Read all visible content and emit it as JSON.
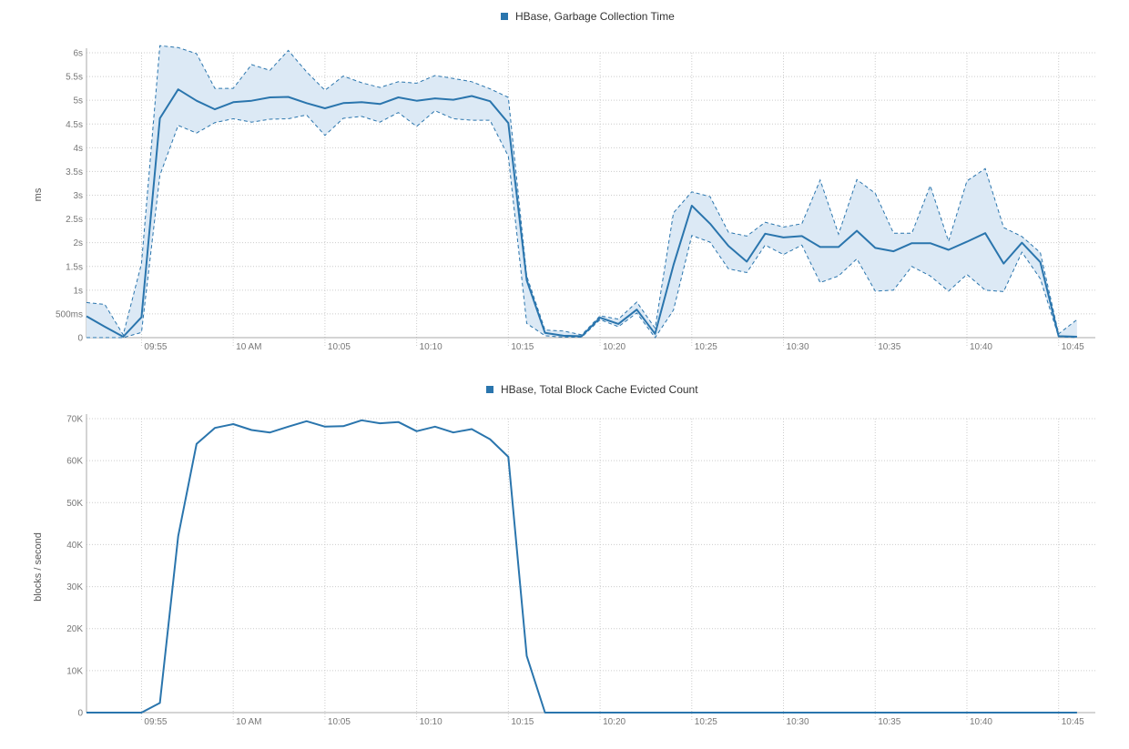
{
  "colors": {
    "series": "#2a75ad",
    "band": "#dce9f5"
  },
  "x_ticks": [
    "09:55",
    "10 AM",
    "10:05",
    "10:10",
    "10:15",
    "10:20",
    "10:25",
    "10:30",
    "10:35",
    "10:40",
    "10:45"
  ],
  "chart_data": [
    {
      "type": "line",
      "title": "",
      "legend": "top-center",
      "series": [
        {
          "name": "HBase, Garbage Collection Time"
        }
      ],
      "ylabel": "ms",
      "ylim": [
        0,
        6000
      ],
      "y_ticks": [
        "0",
        "500ms",
        "1s",
        "1.5s",
        "2s",
        "2.5s",
        "3s",
        "3.5s",
        "4s",
        "4.5s",
        "5s",
        "5.5s",
        "6s"
      ],
      "xlim_minutes": [
        0,
        55
      ],
      "x_labels_at_minutes": [
        3,
        8,
        13,
        18,
        23,
        28,
        33,
        38,
        43,
        48,
        53
      ],
      "x_minutes": [
        0,
        1,
        2,
        3,
        4,
        5,
        6,
        7,
        8,
        9,
        10,
        11,
        12,
        13,
        14,
        15,
        16,
        17,
        18,
        19,
        20,
        21,
        22,
        23,
        24,
        25,
        26,
        27,
        28,
        29,
        30,
        31,
        32,
        33,
        34,
        35,
        36,
        37,
        38,
        39,
        40,
        41,
        42,
        43,
        44,
        45,
        46,
        47,
        48,
        49,
        50,
        51,
        52,
        53,
        54
      ],
      "values": [
        450,
        230,
        20,
        430,
        4620,
        5230,
        4990,
        4810,
        4960,
        4990,
        5060,
        5070,
        4940,
        4830,
        4940,
        4960,
        4920,
        5060,
        4990,
        5040,
        5010,
        5090,
        4980,
        4520,
        1210,
        100,
        40,
        30,
        420,
        290,
        590,
        80,
        1530,
        2780,
        2400,
        1930,
        1600,
        2190,
        2110,
        2140,
        1910,
        1910,
        2250,
        1890,
        1820,
        1990,
        1990,
        1850,
        2020,
        2200,
        1560,
        2000,
        1590,
        30,
        20
      ],
      "upper": [
        740,
        700,
        60,
        1560,
        6150,
        6110,
        5980,
        5250,
        5250,
        5750,
        5630,
        6050,
        5600,
        5210,
        5510,
        5370,
        5270,
        5390,
        5360,
        5520,
        5460,
        5390,
        5240,
        5060,
        1300,
        160,
        140,
        60,
        460,
        390,
        750,
        200,
        2630,
        3070,
        2970,
        2220,
        2140,
        2430,
        2330,
        2400,
        3320,
        2180,
        3330,
        3040,
        2200,
        2200,
        3200,
        2030,
        3300,
        3560,
        2320,
        2130,
        1790,
        80,
        380
      ],
      "lower": [
        0,
        0,
        0,
        110,
        3420,
        4470,
        4310,
        4530,
        4610,
        4540,
        4600,
        4610,
        4690,
        4260,
        4620,
        4660,
        4540,
        4740,
        4450,
        4780,
        4610,
        4580,
        4580,
        3820,
        300,
        40,
        10,
        10,
        380,
        230,
        520,
        0,
        580,
        2150,
        2010,
        1450,
        1370,
        1950,
        1750,
        1950,
        1160,
        1300,
        1660,
        980,
        1000,
        1500,
        1300,
        980,
        1330,
        1000,
        970,
        1800,
        1240,
        20,
        0
      ]
    },
    {
      "type": "line",
      "title": "",
      "legend": "top-center",
      "series": [
        {
          "name": "HBase, Total Block Cache Evicted Count"
        }
      ],
      "ylabel": "blocks / second",
      "ylim": [
        0,
        70000
      ],
      "y_ticks": [
        "0",
        "10K",
        "20K",
        "30K",
        "40K",
        "50K",
        "60K",
        "70K"
      ],
      "xlim_minutes": [
        0,
        55
      ],
      "x_labels_at_minutes": [
        3,
        8,
        13,
        18,
        23,
        28,
        33,
        38,
        43,
        48,
        53
      ],
      "x_minutes": [
        0,
        1,
        2,
        3,
        4,
        5,
        6,
        7,
        8,
        9,
        10,
        11,
        12,
        13,
        14,
        15,
        16,
        17,
        18,
        19,
        20,
        21,
        22,
        23,
        24,
        25,
        26,
        27,
        28,
        29,
        30,
        31,
        32,
        33,
        34,
        35,
        36,
        37,
        38,
        39,
        40,
        41,
        42,
        43,
        44,
        45,
        46,
        47,
        48,
        49,
        50,
        51,
        52,
        53,
        54
      ],
      "values": [
        0,
        0,
        0,
        0,
        2300,
        42000,
        64000,
        67800,
        68700,
        67300,
        66700,
        68100,
        69400,
        68100,
        68200,
        69600,
        68900,
        69200,
        67000,
        68100,
        66700,
        67500,
        65100,
        60900,
        13500,
        0,
        0,
        0,
        0,
        0,
        0,
        0,
        0,
        0,
        0,
        0,
        0,
        0,
        0,
        0,
        0,
        0,
        0,
        0,
        0,
        0,
        0,
        0,
        0,
        0,
        0,
        0,
        0,
        0,
        0
      ]
    }
  ]
}
